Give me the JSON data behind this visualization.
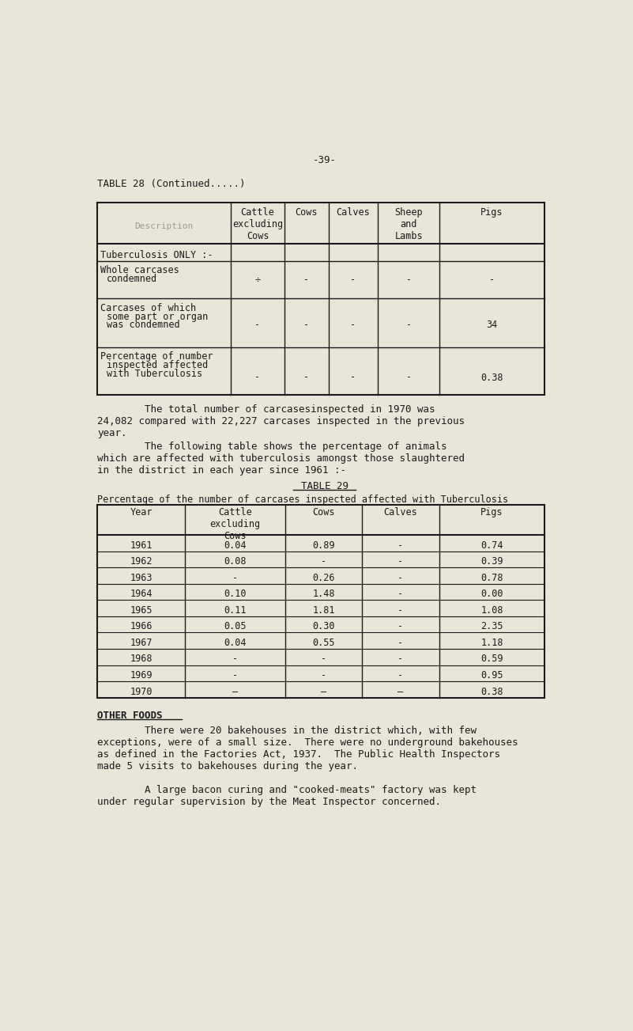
{
  "page_number": "-39-",
  "table28_title": "TABLE 28 (Continued.....)",
  "table28_headers": [
    "",
    "Cattle\nexcluding\nCows",
    "Cows",
    "Calves",
    "Sheep\nand\nLambs",
    "Pigs"
  ],
  "table28_rows": [
    [
      "Tuberculosis ONLY :-",
      "",
      "",
      "",
      "",
      ""
    ],
    [
      "Whole carcases\n  condemned",
      "÷",
      "-",
      "-",
      "-",
      "-"
    ],
    [
      "Carcases of which\n  some part or organ\n  was condemned",
      "-",
      "-",
      "-",
      "-",
      "34"
    ],
    [
      "Percentage of number\n  inspected affected\n  with Tuberculosis",
      "-",
      "-",
      "-",
      "-",
      "0.38"
    ]
  ],
  "paragraph1": "        The total number of carcasesinspected in 1970 was\n24,082 compared with 22,227 carcases inspected in the previous\nyear.",
  "paragraph2": "        The following table shows the percentage of animals\nwhich are affected with tuberculosis amongst those slaughtered\nin the district in each year since 1961 :-",
  "table29_title": "TABLE 29",
  "table29_subtitle": "Percentage of the number of carcases inspected affected with Tuberculosis",
  "table29_headers": [
    "Year",
    "Cattle\nexcluding\nCows",
    "Cows",
    "Calves",
    "Pigs"
  ],
  "table29_rows": [
    [
      "1961",
      "0.04",
      "0.89",
      "-",
      "0.74"
    ],
    [
      "1962",
      "0.08",
      "-",
      "-",
      "0.39"
    ],
    [
      "1963",
      "-",
      "0.26",
      "-",
      "0.78"
    ],
    [
      "1964",
      "0.10",
      "1.48",
      "-",
      "0.00"
    ],
    [
      "1965",
      "0.11",
      "1.81",
      "-",
      "1.08"
    ],
    [
      "1966",
      "0.05",
      "0.30",
      "-",
      "2.35"
    ],
    [
      "1967",
      "0.04",
      "0.55",
      "-",
      "1.18"
    ],
    [
      "1968",
      "-",
      "-",
      "-",
      "0.59"
    ],
    [
      "1969",
      "-",
      "-",
      "-",
      "0.95"
    ],
    [
      "1970",
      "—",
      "—",
      "—",
      "0.38"
    ]
  ],
  "other_foods_title": "OTHER FOODS",
  "paragraph3": "        There were 20 bakehouses in the district which, with few\nexceptions, were of a small size.  There were no underground bakehouses\nas defined in the Factories Act, 1937.  The Public Health Inspectors\nmade 5 visits to bakehouses during the year.",
  "paragraph4": "        A large bacon curing and \"cooked-meats\" factory was kept\nunder regular supervision by the Meat Inspector concerned.",
  "bg_color": "#e8e6d8",
  "text_color": "#1a1a1a",
  "mono_font": "DejaVu Sans Mono"
}
